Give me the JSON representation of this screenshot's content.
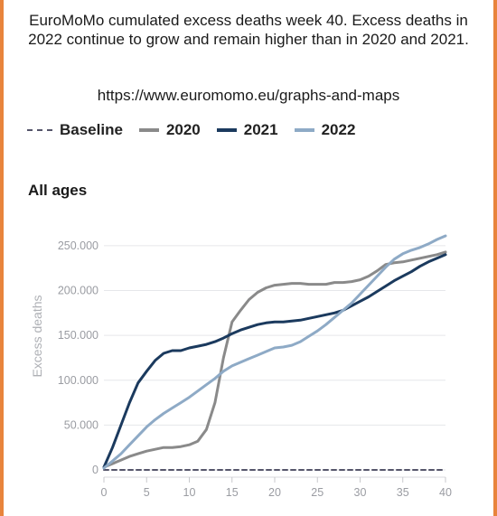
{
  "post": {
    "caption": "EuroMoMo cumulated excess deaths week 40. Excess deaths in 2022 continue to grow and remain higher than in 2020 and 2021.",
    "source_url": "https://www.euromomo.eu/graphs-and-maps"
  },
  "chart_data": {
    "type": "line",
    "title": "All ages",
    "xlabel": "",
    "ylabel": "Excess deaths",
    "xlim": [
      0,
      40
    ],
    "ylim": [
      0,
      262000
    ],
    "x_ticks": [
      0,
      5,
      10,
      15,
      20,
      25,
      30,
      35,
      40
    ],
    "x_tick_labels": [
      "0",
      "5",
      "10",
      "15",
      "20",
      "25",
      "30",
      "35",
      "40"
    ],
    "y_ticks": [
      0,
      50000,
      100000,
      150000,
      200000,
      250000
    ],
    "y_tick_labels": [
      "0",
      "50.000",
      "100.000",
      "150.000",
      "200.000",
      "250.000"
    ],
    "grid": "horizontal",
    "legend_position": "top",
    "series": [
      {
        "name": "Baseline",
        "style": "dashed",
        "color": "#55556a",
        "x": [
          0,
          40
        ],
        "values": [
          0,
          0
        ]
      },
      {
        "name": "2020",
        "style": "solid",
        "color": "#8a8a8a",
        "x": [
          0,
          1,
          2,
          3,
          4,
          5,
          6,
          7,
          8,
          9,
          10,
          11,
          12,
          13,
          14,
          15,
          16,
          17,
          18,
          19,
          20,
          21,
          22,
          23,
          24,
          25,
          26,
          27,
          28,
          29,
          30,
          31,
          32,
          33,
          34,
          35,
          36,
          37,
          38,
          39,
          40
        ],
        "values": [
          3000,
          7000,
          11000,
          15000,
          18000,
          21000,
          23000,
          25000,
          25000,
          26000,
          28000,
          32000,
          45000,
          75000,
          125000,
          165000,
          178000,
          190000,
          198000,
          203000,
          206000,
          207000,
          208000,
          208000,
          207000,
          207000,
          207000,
          209000,
          209000,
          210000,
          212000,
          216000,
          222000,
          229000,
          231000,
          232000,
          234000,
          236000,
          238000,
          240000,
          243000
        ]
      },
      {
        "name": "2021",
        "style": "solid",
        "color": "#1b3a5e",
        "x": [
          0,
          1,
          2,
          3,
          4,
          5,
          6,
          7,
          8,
          9,
          10,
          11,
          12,
          13,
          14,
          15,
          16,
          17,
          18,
          19,
          20,
          21,
          22,
          23,
          24,
          25,
          26,
          27,
          28,
          29,
          30,
          31,
          32,
          33,
          34,
          35,
          36,
          37,
          38,
          39,
          40
        ],
        "values": [
          3000,
          25000,
          50000,
          75000,
          97000,
          110000,
          122000,
          130000,
          133000,
          133000,
          136000,
          138000,
          140000,
          143000,
          147000,
          152000,
          156000,
          159000,
          162000,
          164000,
          165000,
          165000,
          166000,
          167000,
          169000,
          171000,
          173000,
          175000,
          178000,
          183000,
          188000,
          193000,
          199000,
          205000,
          211000,
          216000,
          221000,
          227000,
          232000,
          236000,
          240000
        ]
      },
      {
        "name": "2022",
        "style": "solid",
        "color": "#8eaac6",
        "x": [
          0,
          1,
          2,
          3,
          4,
          5,
          6,
          7,
          8,
          9,
          10,
          11,
          12,
          13,
          14,
          15,
          16,
          17,
          18,
          19,
          20,
          21,
          22,
          23,
          24,
          25,
          26,
          27,
          28,
          29,
          30,
          31,
          32,
          33,
          34,
          35,
          36,
          37,
          38,
          39,
          40
        ],
        "values": [
          2000,
          10000,
          18000,
          28000,
          38000,
          48000,
          56000,
          63000,
          69000,
          75000,
          81000,
          88000,
          95000,
          102000,
          110000,
          116000,
          120000,
          124000,
          128000,
          132000,
          136000,
          137000,
          139000,
          143000,
          149000,
          155000,
          162000,
          170000,
          178000,
          186000,
          196000,
          206000,
          216000,
          226000,
          235000,
          241000,
          245000,
          248000,
          252000,
          257000,
          261000
        ]
      }
    ]
  }
}
